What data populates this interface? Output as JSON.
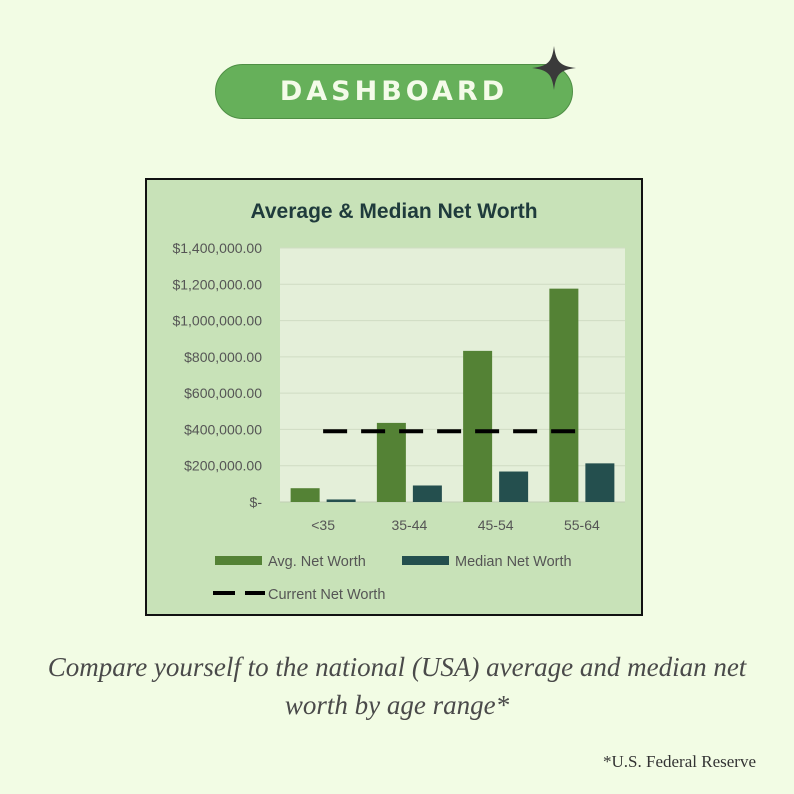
{
  "header": {
    "label": "DASHBOARD"
  },
  "colors": {
    "avg": "#548235",
    "median": "#244f4e",
    "current": "#000000",
    "plot_bg": "#e4efd9",
    "frame_bg": "#c8e2b8",
    "title": "#1f3b3c",
    "text": "#555555"
  },
  "chart_data": {
    "type": "bar",
    "title": "Average & Median Net Worth",
    "categories": [
      "<35",
      "35-44",
      "45-54",
      "55-64"
    ],
    "series": [
      {
        "name": "Avg. Net Worth",
        "values": [
          76000,
          436000,
          833000,
          1176000
        ]
      },
      {
        "name": "Median Net Worth",
        "values": [
          14000,
          91000,
          168000,
          213000
        ]
      }
    ],
    "lines": [
      {
        "name": "Current Net Worth",
        "value": 390000,
        "style": "dashed"
      }
    ],
    "ylim": [
      0,
      1400000
    ],
    "yticks": [
      {
        "value": 0,
        "label": "$-"
      },
      {
        "value": 200000,
        "label": "$200,000.00"
      },
      {
        "value": 400000,
        "label": "$400,000.00"
      },
      {
        "value": 600000,
        "label": "$600,000.00"
      },
      {
        "value": 800000,
        "label": "$800,000.00"
      },
      {
        "value": 1000000,
        "label": "$1,000,000.00"
      },
      {
        "value": 1200000,
        "label": "$1,200,000.00"
      },
      {
        "value": 1400000,
        "label": "$1,400,000.00"
      }
    ],
    "grid": true,
    "legend": "bottom"
  },
  "caption": "Compare yourself to the national (USA) average and median net worth by age range*",
  "source": "*U.S. Federal Reserve"
}
